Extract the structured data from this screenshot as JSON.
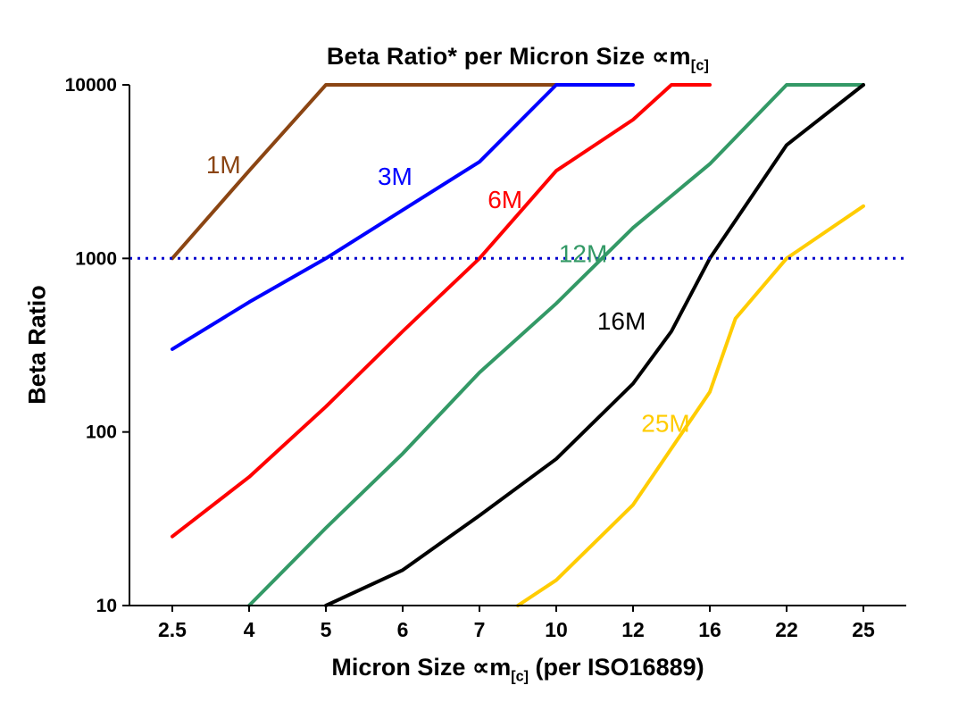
{
  "title": {
    "prefix": "Beta Ratio* per Micron Size ∝m",
    "sub": "[c]"
  },
  "axes": {
    "y_title": "Beta Ratio",
    "x_title_prefix": "Micron Size ∝m",
    "x_title_sub": "[c]",
    "x_title_suffix": " (per ISO16889)"
  },
  "chart_data": {
    "type": "line",
    "title": "Beta Ratio* per Micron Size ∝m[c]",
    "xlabel": "Micron Size ∝m[c] (per ISO16889)",
    "ylabel": "Beta Ratio",
    "x_categories": [
      2.5,
      4,
      5,
      6,
      7,
      10,
      12,
      16,
      22,
      25
    ],
    "x_tick_labels": [
      "2.5",
      "4",
      "5",
      "6",
      "7",
      "10",
      "12",
      "16",
      "22",
      "25"
    ],
    "y_scale": "log",
    "ylim": [
      10,
      10000
    ],
    "y_ticks": [
      10,
      100,
      1000,
      10000
    ],
    "y_tick_labels": [
      "10",
      "100",
      "1000",
      "10000"
    ],
    "grid": false,
    "legend": "inline-labels",
    "reference_line": {
      "y": 1000,
      "color": "#0000CC",
      "style": "dotted"
    },
    "series": [
      {
        "name": "1M",
        "color": "#8B4513",
        "label_pos": [
          3.5,
          3100
        ],
        "points": [
          [
            2.5,
            1000
          ],
          [
            4,
            3200
          ],
          [
            5,
            10000
          ],
          [
            7,
            10000
          ],
          [
            10,
            10000
          ]
        ]
      },
      {
        "name": "3M",
        "color": "#0000FF",
        "label_pos": [
          5.9,
          2650
        ],
        "points": [
          [
            2.5,
            300
          ],
          [
            4,
            560
          ],
          [
            5,
            1000
          ],
          [
            6,
            1900
          ],
          [
            7,
            3600
          ],
          [
            10,
            10000
          ],
          [
            12,
            10000
          ]
        ]
      },
      {
        "name": "6M",
        "color": "#FF0000",
        "label_pos": [
          8.0,
          1950
        ],
        "points": [
          [
            2.5,
            25
          ],
          [
            4,
            55
          ],
          [
            5,
            140
          ],
          [
            6,
            380
          ],
          [
            7,
            1000
          ],
          [
            10,
            3200
          ],
          [
            12,
            6300
          ],
          [
            14,
            10000
          ],
          [
            16,
            10000
          ]
        ]
      },
      {
        "name": "12M",
        "color": "#339966",
        "label_pos": [
          10.7,
          950
        ],
        "points": [
          [
            4,
            10
          ],
          [
            5,
            28
          ],
          [
            6,
            75
          ],
          [
            7,
            220
          ],
          [
            10,
            550
          ],
          [
            12,
            1500
          ],
          [
            16,
            3500
          ],
          [
            22,
            10000
          ],
          [
            25,
            10000
          ]
        ]
      },
      {
        "name": "16M",
        "color": "#000000",
        "label_pos": [
          11.7,
          390
        ],
        "points": [
          [
            5,
            10
          ],
          [
            6,
            16
          ],
          [
            7,
            33
          ],
          [
            10,
            70
          ],
          [
            12,
            190
          ],
          [
            14,
            380
          ],
          [
            16,
            1000
          ],
          [
            22,
            4500
          ],
          [
            25,
            10000
          ]
        ]
      },
      {
        "name": "25M",
        "color": "#FFCC00",
        "label_pos": [
          13.7,
          100
        ],
        "points": [
          [
            8.5,
            10
          ],
          [
            10,
            14
          ],
          [
            12,
            38
          ],
          [
            16,
            170
          ],
          [
            18,
            450
          ],
          [
            22,
            1000
          ],
          [
            25,
            2000
          ]
        ]
      }
    ]
  }
}
